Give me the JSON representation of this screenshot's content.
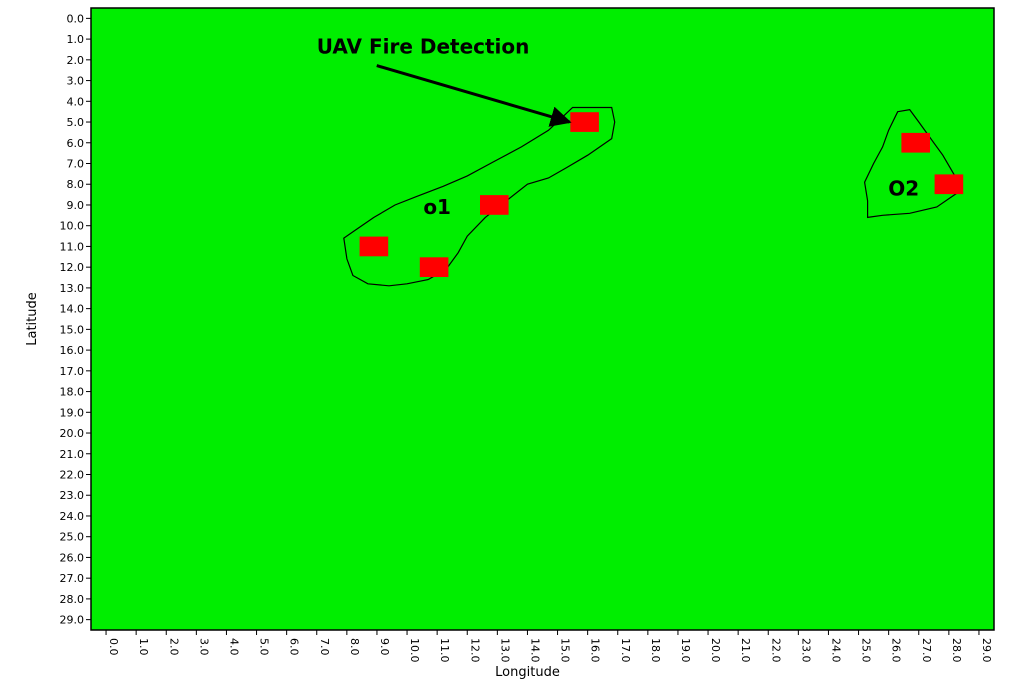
{
  "colors": {
    "background": "#00ee00",
    "hotspot": "#ff0000",
    "outline": "#000000"
  },
  "chart_data": {
    "type": "scatter",
    "title": "",
    "xlabel": "Longitude",
    "ylabel": "Latitude",
    "xlim": [
      -0.5,
      29.5
    ],
    "ylim": [
      -0.5,
      29.5
    ],
    "y_inverted": true,
    "grid": false,
    "x_ticks": [
      "0.0",
      "1.0",
      "2.0",
      "3.0",
      "4.0",
      "5.0",
      "6.0",
      "7.0",
      "8.0",
      "9.0",
      "10.0",
      "11.0",
      "12.0",
      "13.0",
      "14.0",
      "15.0",
      "16.0",
      "17.0",
      "18.0",
      "19.0",
      "20.0",
      "21.0",
      "22.0",
      "23.0",
      "24.0",
      "25.0",
      "26.0",
      "27.0",
      "28.0",
      "29.0"
    ],
    "y_ticks": [
      "0.0",
      "1.0",
      "2.0",
      "3.0",
      "4.0",
      "5.0",
      "6.0",
      "7.0",
      "8.0",
      "9.0",
      "10.0",
      "11.0",
      "12.0",
      "13.0",
      "14.0",
      "15.0",
      "16.0",
      "17.0",
      "18.0",
      "19.0",
      "20.0",
      "21.0",
      "22.0",
      "23.0",
      "24.0",
      "25.0",
      "26.0",
      "27.0",
      "28.0",
      "29.0"
    ],
    "hotspots": [
      {
        "x": 15.9,
        "y": 5.0
      },
      {
        "x": 12.9,
        "y": 9.0
      },
      {
        "x": 8.9,
        "y": 11.0
      },
      {
        "x": 10.9,
        "y": 12.0
      },
      {
        "x": 26.9,
        "y": 6.0
      },
      {
        "x": 28.0,
        "y": 8.0
      }
    ],
    "clusters": [
      {
        "label": "o1",
        "label_pos": {
          "x": 11.0,
          "y": 9.1
        },
        "outline": [
          [
            15.5,
            4.3
          ],
          [
            16.8,
            4.3
          ],
          [
            16.9,
            5.0
          ],
          [
            16.8,
            5.8
          ],
          [
            16.0,
            6.6
          ],
          [
            15.3,
            7.2
          ],
          [
            14.7,
            7.7
          ],
          [
            14.0,
            8.0
          ],
          [
            13.3,
            8.8
          ],
          [
            12.6,
            9.6
          ],
          [
            12.0,
            10.5
          ],
          [
            11.7,
            11.3
          ],
          [
            11.3,
            12.1
          ],
          [
            10.7,
            12.6
          ],
          [
            10.0,
            12.8
          ],
          [
            9.4,
            12.9
          ],
          [
            8.7,
            12.8
          ],
          [
            8.2,
            12.4
          ],
          [
            8.0,
            11.6
          ],
          [
            7.9,
            10.6
          ],
          [
            8.3,
            10.2
          ],
          [
            8.9,
            9.6
          ],
          [
            9.6,
            9.0
          ],
          [
            10.3,
            8.6
          ],
          [
            11.2,
            8.1
          ],
          [
            12.0,
            7.6
          ],
          [
            12.9,
            6.9
          ],
          [
            13.8,
            6.2
          ],
          [
            14.7,
            5.4
          ]
        ]
      },
      {
        "label": "O2",
        "label_pos": {
          "x": 26.5,
          "y": 8.2
        },
        "outline": [
          [
            26.3,
            4.5
          ],
          [
            26.7,
            4.4
          ],
          [
            27.0,
            5.0
          ],
          [
            27.5,
            6.0
          ],
          [
            27.8,
            6.6
          ],
          [
            28.2,
            7.6
          ],
          [
            28.3,
            8.4
          ],
          [
            27.6,
            9.1
          ],
          [
            26.7,
            9.4
          ],
          [
            25.8,
            9.5
          ],
          [
            25.3,
            9.6
          ],
          [
            25.3,
            8.8
          ],
          [
            25.2,
            7.9
          ],
          [
            25.5,
            7.0
          ],
          [
            25.8,
            6.2
          ],
          [
            26.0,
            5.4
          ]
        ]
      }
    ],
    "annotations": [
      {
        "text": "UAV Fire Detection",
        "text_pos": {
          "x": 7.0,
          "y": 1.7
        },
        "arrow_to": {
          "x": 15.4,
          "y": 5.0
        }
      }
    ]
  }
}
